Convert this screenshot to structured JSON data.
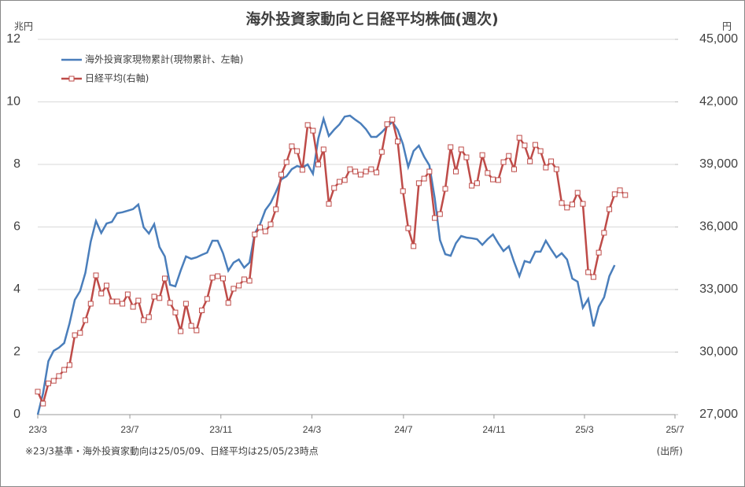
{
  "chart_data": {
    "type": "line",
    "title": "海外投資家動向と日経平均株価(週次)",
    "y_unit": "兆円",
    "y2_unit": "円",
    "note": "※23/3基準・海外投資家動向は25/05/09、日経平均は25/05/23時点",
    "source": "(出所)",
    "xlim": [
      0,
      120.4
    ],
    "xticks": [
      {
        "value": 0,
        "label": "23/3"
      },
      {
        "value": 17.4,
        "label": "23/7"
      },
      {
        "value": 34.6,
        "label": "23/11"
      },
      {
        "value": 51.8,
        "label": "24/3"
      },
      {
        "value": 69.1,
        "label": "24/7"
      },
      {
        "value": 86.2,
        "label": "24/11"
      },
      {
        "value": 103.3,
        "label": "25/3"
      },
      {
        "value": 120.4,
        "label": "25/7"
      }
    ],
    "ylim": [
      0,
      12
    ],
    "yticks": [
      0,
      2,
      4,
      6,
      8,
      10,
      12
    ],
    "y2lim": [
      27000,
      45000
    ],
    "y2ticks": [
      {
        "value": 27000,
        "label": "27,000"
      },
      {
        "value": 30000,
        "label": "30,000"
      },
      {
        "value": 33000,
        "label": "33,000"
      },
      {
        "value": 36000,
        "label": "36,000"
      },
      {
        "value": 39000,
        "label": "39,000"
      },
      {
        "value": 42000,
        "label": "42,000"
      },
      {
        "value": 45000,
        "label": "45,000"
      }
    ],
    "grid": true,
    "series": [
      {
        "name": "海外投資家現物累計(現物累計、左軸)",
        "color": "#4a7ebb",
        "axis": "y",
        "marker": false,
        "values": [
          0,
          0.68,
          1.71,
          2.04,
          2.14,
          2.29,
          2.92,
          3.67,
          3.95,
          4.53,
          5.53,
          6.19,
          5.81,
          6.11,
          6.16,
          6.44,
          6.47,
          6.52,
          6.57,
          6.72,
          5.99,
          5.79,
          6.09,
          5.36,
          5.06,
          4.15,
          4.1,
          4.6,
          5.06,
          4.98,
          5.03,
          5.11,
          5.18,
          5.56,
          5.56,
          5.16,
          4.6,
          4.86,
          4.96,
          4.7,
          4.86,
          5.79,
          6.09,
          6.54,
          6.77,
          7.12,
          7.52,
          7.62,
          7.85,
          7.95,
          7.9,
          8.0,
          7.7,
          8.83,
          9.46,
          8.91,
          9.11,
          9.28,
          9.53,
          9.56,
          9.43,
          9.31,
          9.13,
          8.88,
          8.88,
          9.03,
          9.21,
          9.36,
          9.11,
          8.65,
          7.92,
          8.43,
          8.6,
          8.25,
          7.97,
          6.92,
          5.58,
          5.13,
          5.08,
          5.48,
          5.71,
          5.66,
          5.64,
          5.61,
          5.43,
          5.61,
          5.76,
          5.48,
          5.23,
          5.38,
          4.88,
          4.43,
          4.91,
          4.86,
          5.21,
          5.21,
          5.56,
          5.28,
          5.03,
          5.16,
          4.96,
          4.35,
          4.25,
          3.42,
          3.7,
          2.82,
          3.45,
          3.75,
          4.43,
          4.78,
          null,
          null
        ]
      },
      {
        "name": "日経平均(右軸)",
        "color": "#be4b48",
        "axis": "y2",
        "marker": true,
        "values": [
          28100,
          27530,
          28500,
          28620,
          28850,
          29150,
          29380,
          30810,
          30920,
          31530,
          32320,
          33680,
          32810,
          33190,
          32430,
          32430,
          32320,
          32770,
          32170,
          32470,
          31530,
          31680,
          32660,
          32590,
          33530,
          32360,
          31900,
          31000,
          32320,
          31260,
          31040,
          32000,
          32550,
          33570,
          33640,
          33530,
          32360,
          33040,
          33190,
          33490,
          33420,
          35640,
          35980,
          35790,
          36130,
          36850,
          38510,
          39110,
          39870,
          39640,
          38740,
          40890,
          40620,
          39000,
          39720,
          37110,
          37870,
          38170,
          38250,
          38770,
          38660,
          38510,
          38660,
          38770,
          38620,
          39600,
          40930,
          41150,
          40100,
          37720,
          35940,
          35080,
          38100,
          38320,
          38660,
          36430,
          36620,
          37830,
          39830,
          38660,
          39720,
          39340,
          37980,
          38100,
          39450,
          38590,
          38280,
          38250,
          39110,
          39410,
          38770,
          40280,
          39910,
          39150,
          39940,
          39640,
          38850,
          39150,
          38770,
          37150,
          36930,
          37080,
          37640,
          37110,
          33830,
          33600,
          34770,
          35720,
          36850,
          37570,
          37760,
          37530
        ]
      }
    ]
  }
}
